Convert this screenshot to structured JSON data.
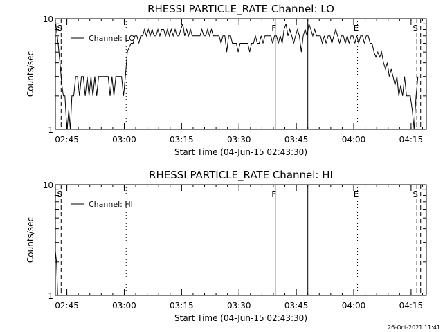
{
  "footer": {
    "date": "26-Oct-2021 11:41"
  },
  "chart_data": [
    {
      "type": "line",
      "title": "RHESSI PARTICLE_RATE Channel: LO",
      "xlabel": "Start Time (04-Jun-15 02:43:30)",
      "ylabel": "Counts/sec",
      "y_scale": "log",
      "ylim": [
        1,
        10
      ],
      "y_ticks": [
        {
          "v": 1,
          "label": "1"
        },
        {
          "v": 10,
          "label": "10"
        }
      ],
      "xlim_minutes": [
        -1.5,
        95.5
      ],
      "x_ticks": [
        {
          "m": 1.5,
          "label": "02:45"
        },
        {
          "m": 16.5,
          "label": "03:00"
        },
        {
          "m": 31.5,
          "label": "03:15"
        },
        {
          "m": 46.5,
          "label": "03:30"
        },
        {
          "m": 61.5,
          "label": "03:45"
        },
        {
          "m": 76.5,
          "label": "04:00"
        },
        {
          "m": 91.5,
          "label": "04:15"
        }
      ],
      "legend": "top-left",
      "series": [
        {
          "name": "Channel: LO",
          "x_minutes": [
            -1.4,
            -0.8,
            -0.3,
            0.2,
            0.6,
            1.0,
            1.3,
            1.6,
            2.0,
            2.4,
            2.8,
            3.3,
            3.8,
            4.3,
            4.8,
            5.3,
            5.8,
            6.3,
            6.8,
            7.3,
            7.8,
            8.3,
            8.8,
            9.3,
            9.8,
            10.3,
            10.8,
            11.3,
            11.8,
            12.3,
            12.8,
            13.3,
            13.8,
            14.3,
            14.8,
            15.3,
            15.8,
            16.3,
            16.8,
            17.3,
            17.8,
            18.3,
            18.8,
            19.3,
            19.8,
            20.3,
            20.8,
            21.3,
            21.8,
            22.3,
            22.8,
            23.3,
            23.8,
            24.3,
            24.8,
            25.3,
            25.8,
            26.3,
            26.8,
            27.3,
            27.8,
            28.3,
            28.8,
            29.3,
            29.8,
            30.3,
            30.8,
            31.3,
            31.8,
            32.3,
            32.8,
            33.3,
            33.8,
            34.3,
            34.8,
            35.3,
            35.8,
            36.3,
            36.8,
            37.3,
            37.8,
            38.3,
            38.8,
            39.3,
            39.8,
            40.3,
            40.8,
            41.3,
            41.8,
            42.3,
            42.8,
            43.3,
            43.8,
            44.3,
            44.8,
            45.3,
            45.8,
            46.3,
            46.8,
            47.3,
            47.8,
            48.3,
            48.8,
            49.3,
            49.8,
            50.3,
            50.8,
            51.3,
            51.8,
            52.3,
            52.8,
            53.3,
            53.8,
            54.3,
            54.8,
            55.3,
            55.8,
            56.3,
            56.8,
            57.3,
            57.8,
            58.3,
            58.8,
            59.3,
            59.8,
            60.3,
            60.8,
            61.3,
            61.8,
            62.3,
            62.8,
            63.3,
            63.8,
            64.3,
            64.8,
            65.3,
            65.8,
            66.3,
            66.8,
            67.3,
            67.8,
            68.3,
            68.8,
            69.3,
            69.8,
            70.3,
            70.8,
            71.3,
            71.8,
            72.3,
            72.8,
            73.3,
            73.8,
            74.3,
            74.8,
            75.3,
            75.8,
            76.3,
            76.8,
            77.3,
            77.8,
            78.3,
            78.8,
            79.3,
            79.8,
            80.3,
            80.8,
            81.3,
            81.8,
            82.3,
            82.8,
            83.3,
            83.8,
            84.3,
            84.8,
            85.3,
            85.8,
            86.3,
            86.8,
            87.3,
            87.8,
            88.3,
            88.8,
            89.3,
            89.8,
            90.3,
            90.8,
            91.3,
            91.8,
            92.3,
            92.8,
            93.3
          ],
          "y": [
            9,
            6,
            4,
            2.5,
            2,
            2,
            1.3,
            1,
            1.5,
            1,
            2,
            2,
            3,
            3,
            2,
            3,
            3,
            2,
            3,
            2,
            3,
            2,
            3,
            2,
            3,
            3,
            3,
            3,
            3,
            3,
            2,
            3,
            2,
            3,
            3,
            3,
            3,
            2,
            3,
            5,
            5.5,
            6,
            6,
            7,
            7,
            6,
            7,
            7,
            8,
            7,
            8,
            7,
            8,
            7,
            7,
            8,
            7,
            8,
            8,
            7,
            8,
            7,
            8,
            7,
            8,
            7,
            7,
            8,
            9,
            7,
            8,
            7,
            8,
            7,
            7,
            7,
            7,
            7,
            8,
            7,
            7,
            8,
            7,
            8,
            7,
            7,
            7,
            7,
            6,
            7,
            7,
            5,
            7,
            7,
            6,
            6,
            6,
            5,
            6,
            6,
            6,
            6,
            6,
            5,
            6,
            6,
            7,
            6,
            6,
            7,
            6,
            7,
            7,
            7,
            7,
            6,
            7,
            7,
            6,
            7,
            6,
            8,
            9,
            7,
            8,
            7,
            6,
            7,
            8,
            7,
            5,
            7,
            8,
            7,
            9,
            8,
            7,
            8,
            7,
            7,
            7,
            6,
            7,
            6,
            7,
            7,
            6,
            7,
            8,
            7,
            6,
            7,
            7,
            6,
            7,
            6,
            7,
            7,
            6,
            7,
            6,
            7,
            7,
            6,
            7,
            7,
            6,
            6,
            5,
            4.5,
            5,
            4.5,
            5,
            4,
            3.5,
            4,
            3,
            3.5,
            3,
            2.5,
            3,
            2,
            2.5,
            2,
            3,
            2,
            2,
            2,
            1.5,
            1,
            2,
            3
          ]
        }
      ],
      "markers": [
        {
          "x_minutes": 0.0,
          "style": "dashed",
          "label": "S"
        },
        {
          "x_minutes": 17.0,
          "style": "dotted",
          "label": ""
        },
        {
          "x_minutes": 56.0,
          "style": "solid",
          "label": "F"
        },
        {
          "x_minutes": 64.5,
          "style": "solid",
          "label": ""
        },
        {
          "x_minutes": 77.5,
          "style": "dotted",
          "label": "E"
        },
        {
          "x_minutes": 93.0,
          "style": "dashed",
          "label": "S"
        },
        {
          "x_minutes": 94.0,
          "style": "dashed",
          "label": ""
        },
        {
          "x_minutes": 95.5,
          "style": "dotted",
          "label": ""
        }
      ]
    },
    {
      "type": "line",
      "title": "RHESSI PARTICLE_RATE Channel: HI",
      "xlabel": "Start Time (04-Jun-15 02:43:30)",
      "ylabel": "Counts/sec",
      "y_scale": "log",
      "ylim": [
        1,
        10
      ],
      "y_ticks": [
        {
          "v": 1,
          "label": "1"
        },
        {
          "v": 10,
          "label": "10"
        }
      ],
      "xlim_minutes": [
        -1.5,
        95.5
      ],
      "x_ticks": [
        {
          "m": 1.5,
          "label": "02:45"
        },
        {
          "m": 16.5,
          "label": "03:00"
        },
        {
          "m": 31.5,
          "label": "03:15"
        },
        {
          "m": 46.5,
          "label": "03:30"
        },
        {
          "m": 61.5,
          "label": "03:45"
        },
        {
          "m": 76.5,
          "label": "04:00"
        },
        {
          "m": 91.5,
          "label": "04:15"
        }
      ],
      "legend": "top-left",
      "series": [
        {
          "name": "Channel: HI",
          "x_minutes": [
            -1.5,
            -1.2,
            -0.9
          ],
          "y": [
            2.5,
            2,
            1
          ]
        }
      ],
      "markers": [
        {
          "x_minutes": 0.0,
          "style": "dashed",
          "label": "S"
        },
        {
          "x_minutes": 17.0,
          "style": "dotted",
          "label": ""
        },
        {
          "x_minutes": 56.0,
          "style": "solid",
          "label": "F"
        },
        {
          "x_minutes": 64.5,
          "style": "solid",
          "label": ""
        },
        {
          "x_minutes": 77.5,
          "style": "dotted",
          "label": "E"
        },
        {
          "x_minutes": 93.0,
          "style": "dashed",
          "label": "S"
        },
        {
          "x_minutes": 94.0,
          "style": "dashed",
          "label": ""
        },
        {
          "x_minutes": 95.5,
          "style": "dotted",
          "label": ""
        }
      ]
    }
  ]
}
